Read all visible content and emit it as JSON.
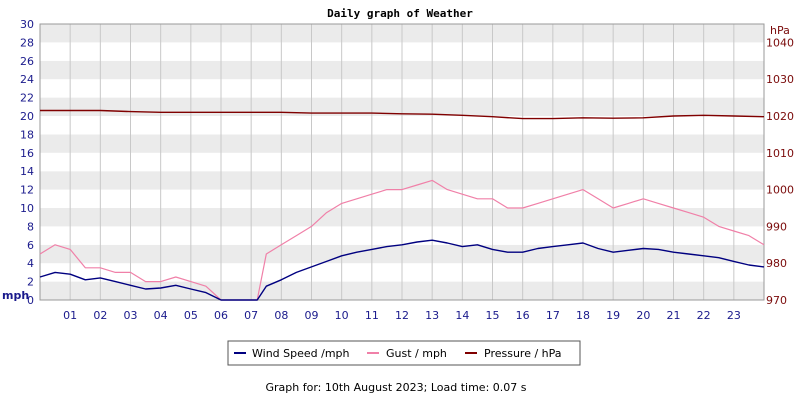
{
  "chart_data": {
    "type": "line",
    "title": "Daily graph of Weather",
    "x_ticks": [
      "01",
      "02",
      "03",
      "04",
      "05",
      "06",
      "07",
      "08",
      "09",
      "10",
      "11",
      "12",
      "13",
      "14",
      "15",
      "16",
      "17",
      "18",
      "19",
      "20",
      "21",
      "22",
      "23"
    ],
    "xlim": [
      0,
      24
    ],
    "left_axis": {
      "unit": "mph",
      "ylim": [
        0,
        30
      ],
      "ticks": [
        "0",
        "2",
        "4",
        "6",
        "8",
        "10",
        "12",
        "14",
        "16",
        "18",
        "20",
        "22",
        "24",
        "26",
        "28",
        "30"
      ]
    },
    "right_axis": {
      "unit": "hPa",
      "ylim": [
        970,
        1045
      ],
      "ticks": [
        "970",
        "980",
        "990",
        "1000",
        "1010",
        "1020",
        "1030",
        "1040"
      ]
    },
    "grid": true,
    "legend_position": "bottom",
    "series": [
      {
        "name": "Wind Speed /mph",
        "axis": "left",
        "color": "#000080",
        "hours": [
          0,
          0.5,
          1,
          1.5,
          2,
          2.5,
          3,
          3.5,
          4,
          4.5,
          5,
          5.5,
          6,
          6.5,
          7,
          7.2,
          7.5,
          8,
          8.5,
          9,
          9.5,
          10,
          10.5,
          11,
          11.5,
          12,
          12.5,
          13,
          13.5,
          14,
          14.5,
          15,
          15.5,
          16,
          16.5,
          17,
          17.5,
          18,
          18.5,
          19,
          19.5,
          20,
          20.5,
          21,
          21.5,
          22,
          22.5,
          23,
          23.5,
          24
        ],
        "values": [
          2.5,
          3,
          2.8,
          2.2,
          2.4,
          2,
          1.6,
          1.2,
          1.3,
          1.6,
          1.2,
          0.8,
          0,
          0,
          0,
          0,
          1.5,
          2.2,
          3,
          3.6,
          4.2,
          4.8,
          5.2,
          5.5,
          5.8,
          6,
          6.3,
          6.5,
          6.2,
          5.8,
          6,
          5.5,
          5.2,
          5.2,
          5.6,
          5.8,
          6,
          6.2,
          5.6,
          5.2,
          5.4,
          5.6,
          5.5,
          5.2,
          5,
          4.8,
          4.6,
          4.2,
          3.8,
          3.6
        ]
      },
      {
        "name": "Gust / mph",
        "axis": "left",
        "color": "#f080a8",
        "hours": [
          0,
          0.5,
          1,
          1.5,
          2,
          2.5,
          3,
          3.5,
          4,
          4.5,
          5,
          5.5,
          6,
          6.5,
          7,
          7.2,
          7.5,
          8,
          8.5,
          9,
          9.5,
          10,
          10.5,
          11,
          11.5,
          12,
          12.5,
          13,
          13.5,
          14,
          14.5,
          15,
          15.5,
          16,
          16.5,
          17,
          17.5,
          18,
          18.5,
          19,
          19.5,
          20,
          20.5,
          21,
          21.5,
          22,
          22.5,
          23,
          23.5,
          24
        ],
        "values": [
          5,
          6,
          5.5,
          3.5,
          3.5,
          3,
          3,
          2,
          2,
          2.5,
          2,
          1.5,
          0,
          0,
          0,
          0,
          5,
          6,
          7,
          8,
          9.5,
          10.5,
          11,
          11.5,
          12,
          12,
          12.5,
          13,
          12,
          11.5,
          11,
          11,
          10,
          10,
          10.5,
          11,
          11.5,
          12,
          11,
          10,
          10.5,
          11,
          10.5,
          10,
          9.5,
          9,
          8,
          7.5,
          7,
          6
        ]
      },
      {
        "name": "Pressure / hPa",
        "axis": "right",
        "color": "#800000",
        "hours": [
          0,
          1,
          2,
          3,
          4,
          5,
          6,
          7,
          8,
          9,
          10,
          11,
          12,
          13,
          14,
          15,
          16,
          17,
          18,
          19,
          20,
          21,
          22,
          23,
          24
        ],
        "values": [
          1021.5,
          1021.5,
          1021.5,
          1021.2,
          1021,
          1021,
          1021,
          1021,
          1021,
          1020.8,
          1020.8,
          1020.8,
          1020.6,
          1020.5,
          1020.2,
          1019.8,
          1019.3,
          1019.3,
          1019.5,
          1019.4,
          1019.5,
          1020,
          1020.2,
          1020,
          1019.8
        ]
      }
    ],
    "footer": "Graph for: 10th August 2023; Load time: 0.07 s"
  }
}
